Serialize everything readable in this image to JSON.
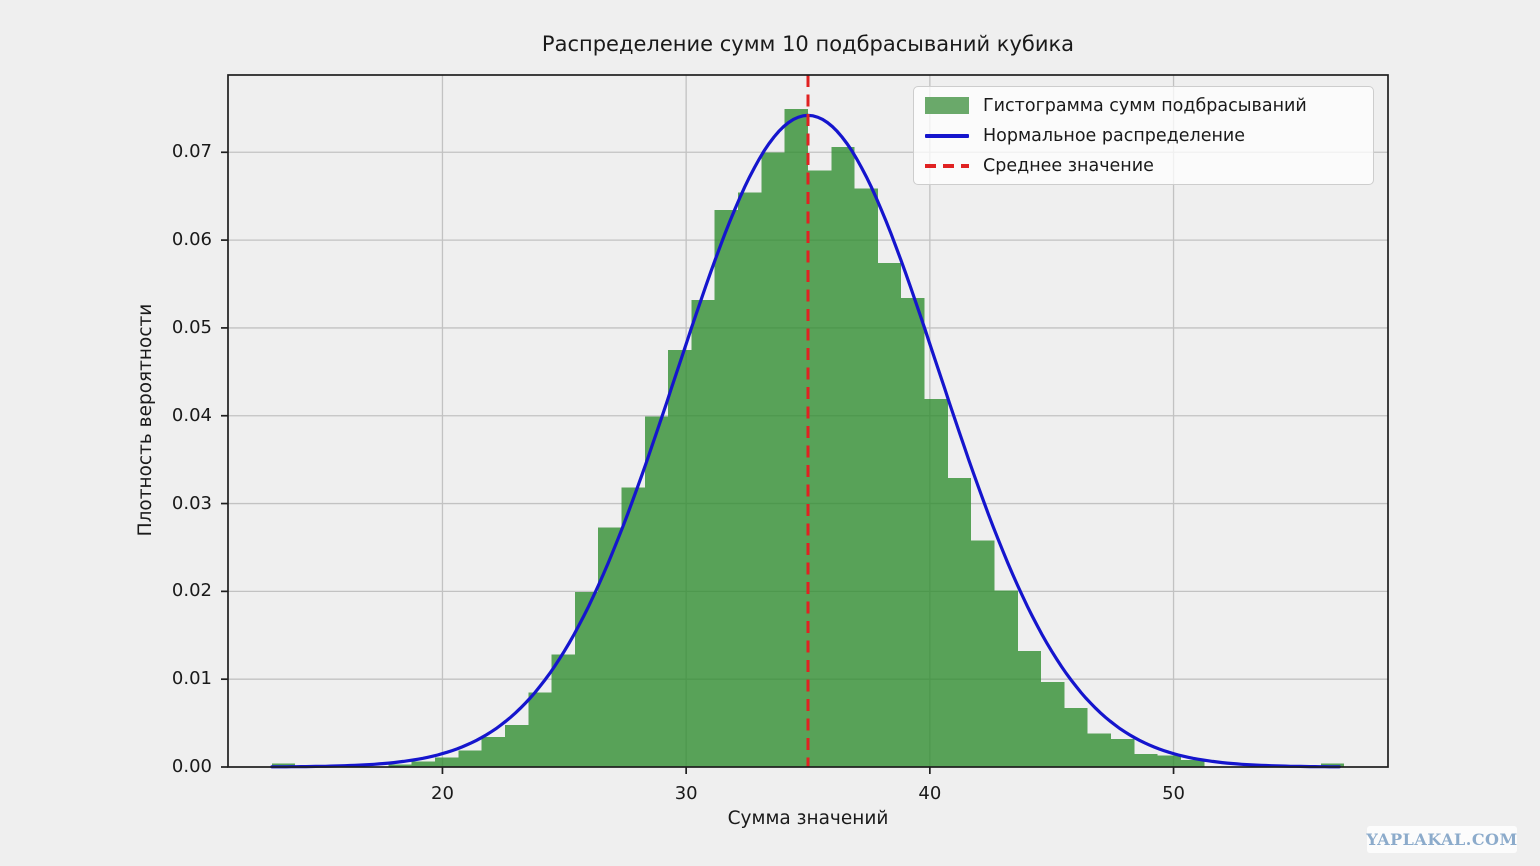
{
  "figure": {
    "background": "#efefef",
    "watermark": "YAPLAKAL.COM"
  },
  "chart_data": {
    "type": "bar",
    "subtype": "histogram-with-normal-curve",
    "title": "Распределение сумм 10 подбрасываний кубика",
    "xlabel": "Сумма значений",
    "ylabel": "Плотность вероятности",
    "xlim": [
      11.2,
      58.8
    ],
    "ylim": [
      0,
      0.0788
    ],
    "grid": true,
    "legend_position": "upper right",
    "x_ticks": [
      {
        "value": 20,
        "label": "20"
      },
      {
        "value": 30,
        "label": "30"
      },
      {
        "value": 40,
        "label": "40"
      },
      {
        "value": 50,
        "label": "50"
      }
    ],
    "y_ticks": [
      {
        "value": 0.0,
        "label": "0.00"
      },
      {
        "value": 0.01,
        "label": "0.01"
      },
      {
        "value": 0.02,
        "label": "0.02"
      },
      {
        "value": 0.03,
        "label": "0.03"
      },
      {
        "value": 0.04,
        "label": "0.04"
      },
      {
        "value": 0.05,
        "label": "0.05"
      },
      {
        "value": 0.06,
        "label": "0.06"
      },
      {
        "value": 0.07,
        "label": "0.07"
      }
    ],
    "histogram": {
      "name": "Гистограмма сумм подбрасываний",
      "bin_start": 13.0,
      "bin_width": 0.9565,
      "densities": [
        0.0004,
        0,
        0,
        0,
        0,
        0.0003,
        0.0006,
        0.0011,
        0.0019,
        0.0034,
        0.0048,
        0.0085,
        0.0128,
        0.0199,
        0.0273,
        0.0318,
        0.0399,
        0.0475,
        0.0532,
        0.0634,
        0.0654,
        0.07,
        0.0749,
        0.0679,
        0.0706,
        0.0659,
        0.0574,
        0.0534,
        0.0419,
        0.0329,
        0.0258,
        0.0201,
        0.0132,
        0.0097,
        0.0067,
        0.0038,
        0.0032,
        0.0015,
        0.0013,
        0.0008,
        0,
        0,
        0,
        0,
        0,
        0.0004
      ],
      "color": "rgba(45,140,45,0.78)"
    },
    "normal_curve": {
      "name": "Нормальное распределение",
      "mean": 35.0,
      "sigma": 5.38,
      "peak_density": 0.0742,
      "x_range": [
        13.0,
        56.8
      ],
      "color": "#1515cd"
    },
    "mean_line": {
      "name": "Среднее значение",
      "x": 35.0,
      "style": "dashed",
      "color": "#e02222"
    },
    "legend": [
      {
        "label": "Гистограмма сумм подбрасываний",
        "swatch": "green-patch"
      },
      {
        "label": "Нормальное распределение",
        "swatch": "blue-line"
      },
      {
        "label": "Среднее значение",
        "swatch": "red-dashed-line"
      }
    ],
    "style": {
      "plot_bg": "#efefef",
      "grid_color": "#c2c2c2",
      "frame_color": "#1f1f1f",
      "text_color": "#1a1a1a"
    }
  }
}
